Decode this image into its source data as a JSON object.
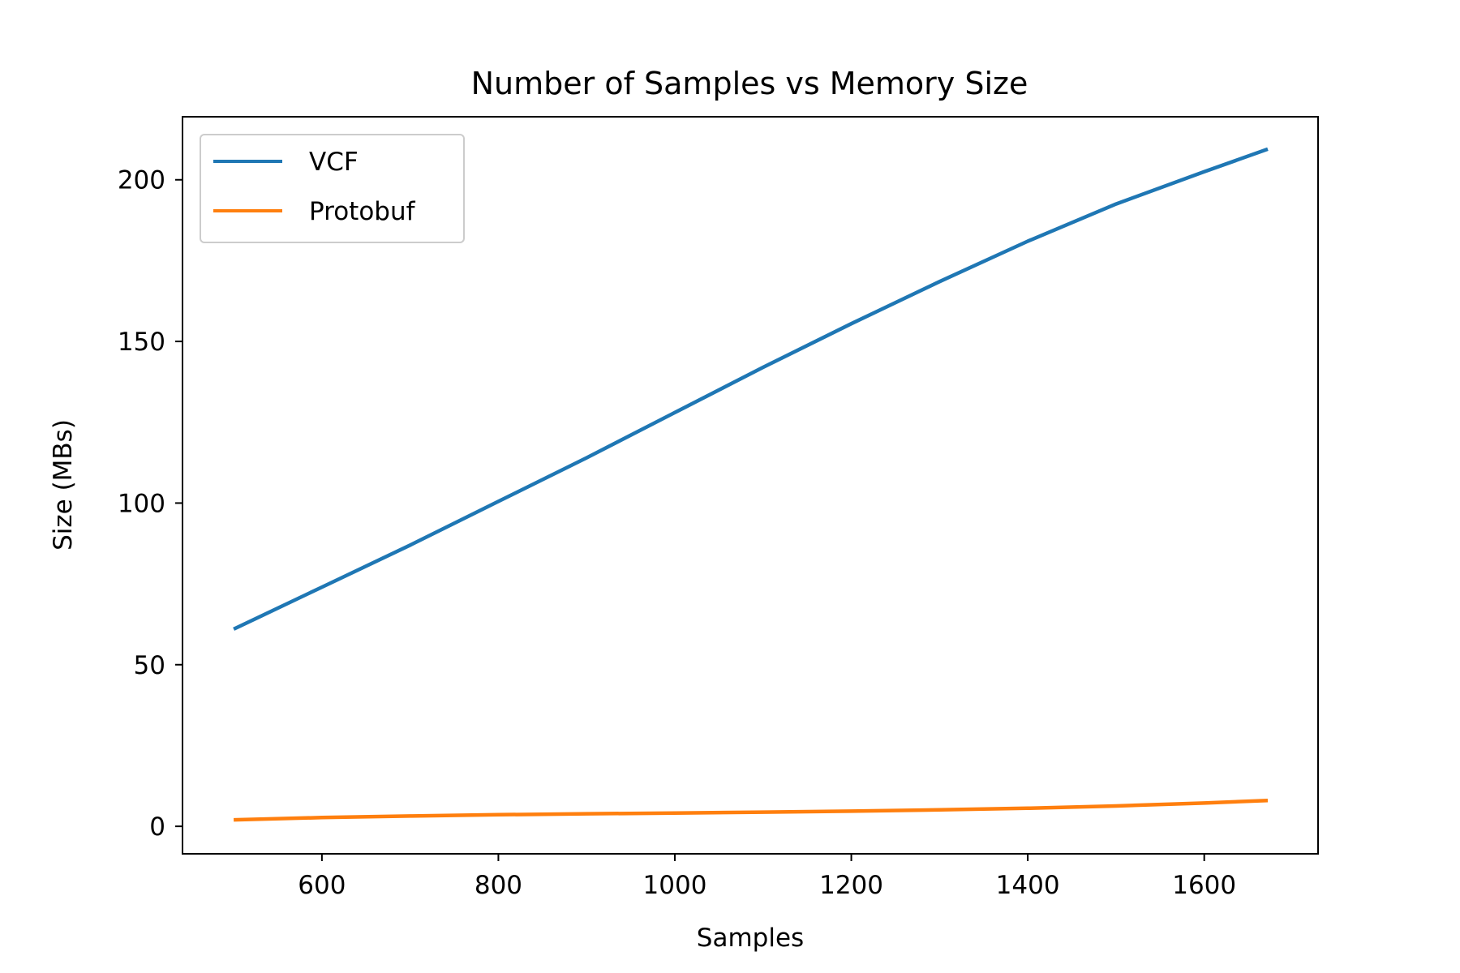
{
  "chart_data": {
    "type": "line",
    "title": "Number of Samples vs Memory Size",
    "xlabel": "Samples",
    "ylabel": "Size (MBs)",
    "xlim": [
      442,
      1729
    ],
    "ylim": [
      -8.5,
      219.5
    ],
    "xticks": [
      600,
      800,
      1000,
      1200,
      1400,
      1600
    ],
    "yticks": [
      0,
      50,
      100,
      150,
      200
    ],
    "grid": false,
    "legend_position": "top-left",
    "series": [
      {
        "name": "VCF",
        "color": "#1f77b4",
        "x": [
          500,
          600,
          700,
          800,
          900,
          1000,
          1100,
          1200,
          1300,
          1400,
          1500,
          1600,
          1672
        ],
        "y": [
          61,
          74,
          87,
          100.5,
          114,
          128,
          142,
          155.5,
          168.5,
          181,
          192.5,
          202.5,
          209.5
        ]
      },
      {
        "name": "Protobuf",
        "color": "#ff7f0e",
        "x": [
          500,
          600,
          700,
          800,
          900,
          1000,
          1100,
          1200,
          1300,
          1400,
          1500,
          1600,
          1672
        ],
        "y": [
          2,
          2.7,
          3.2,
          3.6,
          3.9,
          4.1,
          4.4,
          4.7,
          5.1,
          5.6,
          6.3,
          7.2,
          8
        ]
      }
    ]
  }
}
